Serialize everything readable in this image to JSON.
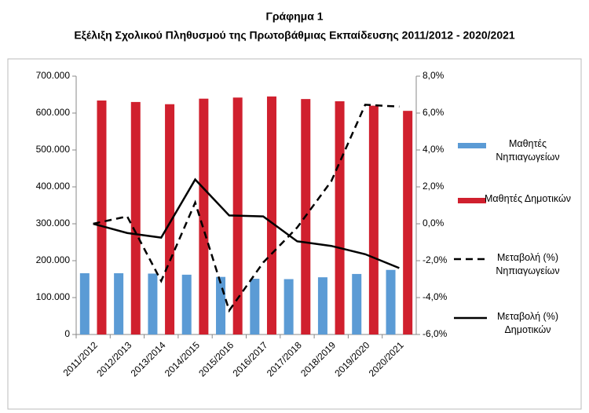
{
  "chart_data": {
    "type": "bar",
    "title": "Γράφημα 1",
    "subtitle": "Εξέλιξη Σχολικού Πληθυσμού της Πρωτοβάθμιας Εκπαίδευσης 2011/2012 - 2020/2021",
    "categories": [
      "2011/2012",
      "2012/2013",
      "2013/2014",
      "2014/2015",
      "2015/2016",
      "2016/2017",
      "2017/2018",
      "2018/2019",
      "2019/2020",
      "2020/2021"
    ],
    "series": [
      {
        "name": "Μαθητές Νηπιαγωγείων",
        "type": "bar",
        "color": "#5b9bd5",
        "values": [
          166000,
          166000,
          165000,
          162000,
          156000,
          151000,
          150000,
          155000,
          164000,
          175000
        ]
      },
      {
        "name": "Μαθητές Δημοτικών",
        "type": "bar",
        "color": "#d0202e",
        "values": [
          634000,
          630000,
          624000,
          639000,
          642000,
          645000,
          638000,
          632000,
          620000,
          606000
        ]
      },
      {
        "name": "Μεταβολή (%) Νηπιαγωγείων",
        "type": "line",
        "axis": "y2",
        "line_style": "dashed",
        "color": "#000000",
        "values": [
          0,
          0.4,
          -3.1,
          1.15,
          -4.7,
          -2.1,
          -0.2,
          2.3,
          6.45,
          6.35
        ]
      },
      {
        "name": "Μεταβολή (%) Δημοτικών",
        "type": "line",
        "axis": "y2",
        "line_style": "solid",
        "color": "#000000",
        "values": [
          0,
          -0.5,
          -0.75,
          2.4,
          0.45,
          0.4,
          -0.95,
          -1.2,
          -1.65,
          -2.4
        ]
      }
    ],
    "ylim": [
      0,
      700000
    ],
    "yticks": [
      0,
      {
        "value": 100000,
        "label": "100.000"
      },
      {
        "value": 200000,
        "label": "200.000"
      },
      {
        "value": 300000,
        "label": "300.000"
      },
      {
        "value": 400000,
        "label": "400.000"
      },
      {
        "value": 500000,
        "label": "500.000"
      },
      {
        "value": 600000,
        "label": "600.000"
      },
      {
        "value": 700000,
        "label": "700.000"
      }
    ],
    "y2lim": [
      -6,
      8
    ],
    "y2ticks": [
      {
        "value": -6,
        "label": "-6,0%"
      },
      {
        "value": -4,
        "label": "-4,0%"
      },
      {
        "value": -2,
        "label": "-2,0%"
      },
      {
        "value": 0,
        "label": "0,0%"
      },
      {
        "value": 2,
        "label": "2,0%"
      },
      {
        "value": 4,
        "label": "4,0%"
      },
      {
        "value": 6,
        "label": "6,0%"
      },
      {
        "value": 8,
        "label": "8,0%"
      }
    ],
    "grid": false,
    "legend": "right"
  }
}
